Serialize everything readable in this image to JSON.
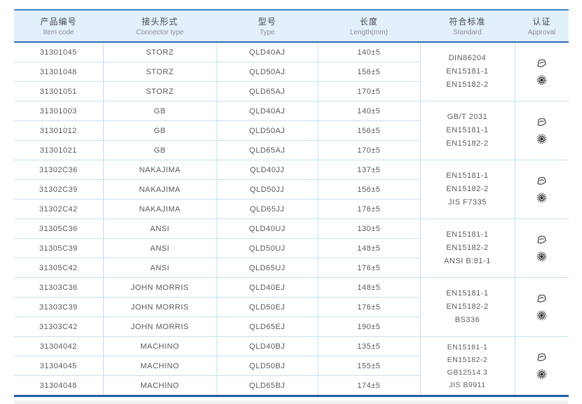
{
  "colors": {
    "header_bg": "#e2f0fa",
    "header_top_border": "#3d82c6",
    "header_bottom_border": "#2a6cb2",
    "table_bottom_border": "#1e5ea8",
    "grid_line": "#c3def2",
    "text": "#595959"
  },
  "table": {
    "columns": [
      {
        "zh": "产品编号",
        "en": "Item code"
      },
      {
        "zh": "接头形式",
        "en": "Connector type"
      },
      {
        "zh": "型号",
        "en": "Type"
      },
      {
        "zh": "长度",
        "en": "Length(mm)"
      },
      {
        "zh": "符合标准",
        "en": "Standard"
      },
      {
        "zh": "认证",
        "en": "Approval"
      }
    ],
    "approval_icon_names": [
      "certificate-stamp-icon",
      "circular-seal-icon"
    ],
    "groups": [
      {
        "connector": "STORZ",
        "rows": [
          {
            "item_code": "31301045",
            "connector_type": "STORZ",
            "type": "QLD40AJ",
            "length": "140±5"
          },
          {
            "item_code": "31301048",
            "connector_type": "STORZ",
            "type": "QLD50AJ",
            "length": "156±5"
          },
          {
            "item_code": "31301051",
            "connector_type": "STORZ",
            "type": "QLD65AJ",
            "length": "170±5"
          }
        ],
        "standards": [
          "DIN86204",
          "EN15181-1",
          "EN15182-2"
        ]
      },
      {
        "connector": "GB",
        "rows": [
          {
            "item_code": "31301003",
            "connector_type": "GB",
            "type": "QLD40AJ",
            "length": "140±5"
          },
          {
            "item_code": "31301012",
            "connector_type": "GB",
            "type": "QLD50AJ",
            "length": "156±5"
          },
          {
            "item_code": "31301021",
            "connector_type": "GB",
            "type": "QLD65AJ",
            "length": "170±5"
          }
        ],
        "standards": [
          "GB/T 2031",
          "EN15181-1",
          "EN15182-2"
        ]
      },
      {
        "connector": "NAKAJIMA",
        "rows": [
          {
            "item_code": "31302C36",
            "connector_type": "NAKAJIMA",
            "type": "QLD40JJ",
            "length": "137±5"
          },
          {
            "item_code": "31302C39",
            "connector_type": "NAKAJIMA",
            "type": "QLD50JJ",
            "length": "156±5"
          },
          {
            "item_code": "31302C42",
            "connector_type": "NAKAJIMA",
            "type": "QLD65JJ",
            "length": "176±5"
          }
        ],
        "standards": [
          "EN15181-1",
          "EN15182-2",
          "JIS F7335"
        ]
      },
      {
        "connector": "ANSI",
        "rows": [
          {
            "item_code": "31305C36",
            "connector_type": "ANSI",
            "type": "QLD40UJ",
            "length": "130±5"
          },
          {
            "item_code": "31305C39",
            "connector_type": "ANSI",
            "type": "QLD50UJ",
            "length": "148±5"
          },
          {
            "item_code": "31305C42",
            "connector_type": "ANSI",
            "type": "QLD65UJ",
            "length": "176±5"
          }
        ],
        "standards": [
          "EN15181-1",
          "EN15182-2",
          "ANSI B:81-1"
        ]
      },
      {
        "connector": "JOHN MORRIS",
        "rows": [
          {
            "item_code": "31303C36",
            "connector_type": "JOHN MORRIS",
            "type": "QLD40EJ",
            "length": "148±5"
          },
          {
            "item_code": "31303C39",
            "connector_type": "JOHN MORRIS",
            "type": "QLD50EJ",
            "length": "176±5"
          },
          {
            "item_code": "31303C42",
            "connector_type": "JOHN MORRIS",
            "type": "QLD65EJ",
            "length": "190±5"
          }
        ],
        "standards": [
          "EN15181-1",
          "EN15182-2",
          "BS336"
        ]
      },
      {
        "connector": "MACHINO",
        "rows": [
          {
            "item_code": "31304042",
            "connector_type": "MACHINO",
            "type": "QLD40BJ",
            "length": "135±5"
          },
          {
            "item_code": "31304045",
            "connector_type": "MACHINO",
            "type": "QLD50BJ",
            "length": "155±5"
          },
          {
            "item_code": "31304048",
            "connector_type": "MACHINO",
            "type": "QLD65BJ",
            "length": "174±5"
          }
        ],
        "standards": [
          "EN15181-1",
          "EN15182-2",
          "GB12514.3",
          "JIS B9911"
        ]
      }
    ]
  }
}
